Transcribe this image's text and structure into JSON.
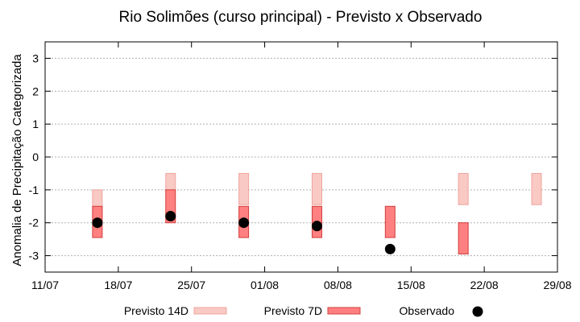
{
  "chart_data": {
    "type": "bar",
    "title": "Rio Solimões (curso principal) - Previsto x Observado",
    "xlabel": "",
    "ylabel": "Anomalia de Precipitação Categorizada",
    "ylim": [
      -3.5,
      3.5
    ],
    "y_ticks": [
      "-3",
      "-2",
      "-1",
      "0",
      "1",
      "2",
      "3"
    ],
    "x_ticks": [
      "11/07",
      "18/07",
      "25/07",
      "01/08",
      "08/08",
      "15/08",
      "22/08",
      "29/08"
    ],
    "grid": true,
    "legend_position": "bottom",
    "colors": {
      "previsto_14d_fill": "#f9c9c4",
      "previsto_14d_stroke": "#f0a59e",
      "previsto_7d_fill": "#ff8080",
      "previsto_7d_stroke": "#d23c3c",
      "observado": "#000000"
    },
    "series": [
      {
        "name": "Previsto 14D",
        "kind": "range",
        "points": [
          {
            "x": "16/07",
            "low": -2.0,
            "high": -1.0
          },
          {
            "x": "23/07",
            "low": -1.0,
            "high": -0.5
          },
          {
            "x": "30/07",
            "low": -1.45,
            "high": -0.5
          },
          {
            "x": "06/08",
            "low": -1.45,
            "high": -0.5
          },
          {
            "x": "20/08",
            "low": -1.45,
            "high": -0.5
          },
          {
            "x": "27/08",
            "low": -1.45,
            "high": -0.5
          }
        ]
      },
      {
        "name": "Previsto 7D",
        "kind": "range",
        "points": [
          {
            "x": "16/07",
            "low": -2.45,
            "high": -1.5
          },
          {
            "x": "23/07",
            "low": -2.0,
            "high": -1.0
          },
          {
            "x": "30/07",
            "low": -2.45,
            "high": -1.5
          },
          {
            "x": "06/08",
            "low": -2.45,
            "high": -1.5
          },
          {
            "x": "13/08",
            "low": -2.45,
            "high": -1.5
          },
          {
            "x": "20/08",
            "low": -2.95,
            "high": -2.0
          }
        ]
      },
      {
        "name": "Observado",
        "kind": "point",
        "points": [
          {
            "x": "16/07",
            "y": -2.0
          },
          {
            "x": "23/07",
            "y": -1.8
          },
          {
            "x": "30/07",
            "y": -2.0
          },
          {
            "x": "06/08",
            "y": -2.1
          },
          {
            "x": "13/08",
            "y": -2.8
          }
        ]
      }
    ]
  }
}
